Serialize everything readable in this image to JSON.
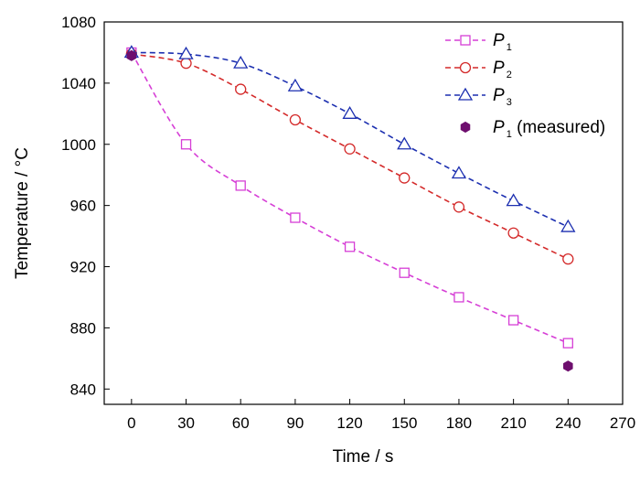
{
  "chart_data": {
    "type": "line",
    "xlabel": "Time / s",
    "ylabel": "Temperature / °C",
    "xlim": [
      -15,
      270
    ],
    "ylim": [
      830,
      1080
    ],
    "xticks": [
      0,
      30,
      60,
      90,
      120,
      150,
      180,
      210,
      240,
      270
    ],
    "yticks": [
      840,
      880,
      920,
      960,
      1000,
      1040,
      1080
    ],
    "grid": false,
    "legend_position": "top-right",
    "x": [
      0,
      30,
      60,
      90,
      120,
      150,
      180,
      210,
      240
    ],
    "series": [
      {
        "name": "P",
        "subscript": "1",
        "color": "#d63fd6",
        "marker": "square",
        "line": "dashed",
        "values": [
          1060,
          1000,
          973,
          952,
          933,
          916,
          900,
          885,
          870
        ]
      },
      {
        "name": "P",
        "subscript": "2",
        "color": "#d42a2a",
        "marker": "circle",
        "line": "dashed",
        "values": [
          1059,
          1053,
          1036,
          1016,
          997,
          978,
          959,
          942,
          925
        ]
      },
      {
        "name": "P",
        "subscript": "3",
        "color": "#1c2fb0",
        "marker": "triangle",
        "line": "dashed",
        "values": [
          1060,
          1059,
          1053,
          1038,
          1020,
          1000,
          981,
          963,
          946
        ]
      },
      {
        "name": "P",
        "subscript": "1",
        "suffix": " (measured)",
        "color": "#6e0f6e",
        "marker": "hexagon",
        "line": "none",
        "x": [
          0,
          240
        ],
        "values": [
          1058,
          855
        ]
      }
    ]
  }
}
